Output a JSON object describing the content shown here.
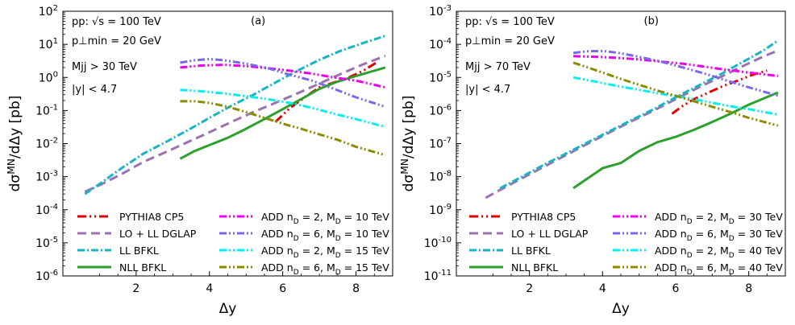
{
  "chart_data": [
    {
      "type": "line",
      "panel_label": "(a)",
      "annotations": [
        "pp:  √s = 100 TeV",
        "p⊥min = 20 GeV",
        "Mjj > 30 TeV",
        "|y| < 4.7"
      ],
      "xlabel": "Δy",
      "ylabel": "dσ^MN/dΔy  [pb]",
      "xlim": [
        0.0,
        9.0
      ],
      "ylim_exp": [
        -6,
        2
      ],
      "xticks": [
        2,
        4,
        6,
        8
      ],
      "ytick_labels": [
        "10^-6",
        "10^-5",
        "10^-4",
        "10^-3",
        "10^-2",
        "10^-1",
        "10^0",
        "10^1",
        "10^2"
      ],
      "series": [
        {
          "name": "PYTHIA8 CP5",
          "color": "#e00000",
          "x": [
            5.8,
            6.2,
            6.6,
            7.0,
            7.4,
            7.8,
            8.2,
            8.6
          ],
          "y": [
            0.045,
            0.12,
            0.25,
            0.5,
            0.7,
            1.0,
            1.6,
            3.0
          ]
        },
        {
          "name": "LO + LL DGLAP",
          "color": "#9b72b0",
          "x": [
            0.6,
            1.0,
            1.6,
            2.2,
            2.8,
            3.4,
            4.0,
            4.6,
            5.2,
            5.8,
            6.4,
            7.0,
            7.6,
            8.2,
            8.8
          ],
          "y": [
            0.00035,
            0.00055,
            0.0012,
            0.0028,
            0.0055,
            0.011,
            0.022,
            0.045,
            0.09,
            0.17,
            0.33,
            0.65,
            1.3,
            2.5,
            4.5
          ]
        },
        {
          "name": "LL BFKL",
          "color": "#17b5c4",
          "x": [
            0.6,
            1.0,
            1.6,
            2.2,
            2.8,
            3.4,
            4.0,
            4.6,
            5.2,
            5.8,
            6.4,
            7.0,
            7.6,
            8.2,
            8.8
          ],
          "y": [
            0.0003,
            0.0006,
            0.0018,
            0.005,
            0.011,
            0.025,
            0.06,
            0.14,
            0.3,
            0.7,
            1.6,
            3.4,
            6.5,
            11,
            18
          ]
        },
        {
          "name": "NLL BFKL",
          "color": "#2ca02c",
          "x": [
            3.2,
            3.6,
            4.0,
            4.5,
            5.0,
            5.5,
            6.0,
            6.5,
            7.0,
            7.5,
            8.0,
            8.8
          ],
          "y": [
            0.0035,
            0.006,
            0.009,
            0.015,
            0.028,
            0.055,
            0.11,
            0.22,
            0.45,
            0.75,
            1.1,
            2.0
          ]
        },
        {
          "name": "ADD n_D = 2,  M_D = 10 TeV",
          "color": "#ee00ee",
          "x": [
            3.2,
            3.8,
            4.4,
            5.0,
            5.6,
            6.2,
            6.8,
            7.4,
            8.0,
            8.8
          ],
          "y": [
            2.0,
            2.3,
            2.4,
            2.2,
            1.9,
            1.6,
            1.3,
            1.0,
            0.8,
            0.5
          ]
        },
        {
          "name": "ADD n_D = 6,  M_D = 10 TeV",
          "color": "#7b68ee",
          "x": [
            3.2,
            3.6,
            4.0,
            4.4,
            5.0,
            5.6,
            6.2,
            6.8,
            7.4,
            8.0,
            8.8
          ],
          "y": [
            2.8,
            3.3,
            3.6,
            3.3,
            2.6,
            1.9,
            1.2,
            0.8,
            0.45,
            0.25,
            0.13
          ]
        },
        {
          "name": "ADD n_D = 2,  M_D = 15 TeV",
          "color": "#00f0f0",
          "x": [
            3.2,
            3.8,
            4.4,
            5.0,
            5.6,
            6.2,
            6.8,
            7.4,
            8.0,
            8.8
          ],
          "y": [
            0.42,
            0.38,
            0.33,
            0.27,
            0.22,
            0.17,
            0.12,
            0.08,
            0.055,
            0.032
          ]
        },
        {
          "name": "ADD n_D = 6,  M_D = 15 TeV",
          "color": "#8b8b00",
          "x": [
            3.2,
            3.6,
            4.0,
            4.5,
            5.0,
            5.5,
            6.0,
            6.5,
            7.0,
            7.5,
            8.0,
            8.8
          ],
          "y": [
            0.19,
            0.19,
            0.17,
            0.13,
            0.09,
            0.06,
            0.04,
            0.028,
            0.019,
            0.013,
            0.008,
            0.0045
          ]
        }
      ]
    },
    {
      "type": "line",
      "panel_label": "(b)",
      "annotations": [
        "pp:  √s = 100 TeV",
        "p⊥min = 20 GeV",
        "Mjj > 70 TeV",
        "|y| < 4.7"
      ],
      "xlabel": "Δy",
      "ylabel": "dσ^MN/dΔy  [pb]",
      "xlim": [
        0.0,
        9.0
      ],
      "ylim_exp": [
        -11,
        -3
      ],
      "xticks": [
        2,
        4,
        6,
        8
      ],
      "ytick_labels": [
        "10^-11",
        "10^-10",
        "10^-9",
        "10^-8",
        "10^-7",
        "10^-6",
        "10^-5",
        "10^-4",
        "10^-3"
      ],
      "series": [
        {
          "name": "PYTHIA8 CP5",
          "color": "#e00000",
          "x": [
            5.9,
            6.2,
            6.5,
            6.9,
            7.3,
            7.7,
            8.1,
            8.5
          ],
          "y": [
            8e-07,
            1.4e-06,
            2.2e-06,
            3.5e-06,
            5.5e-06,
            8e-06,
            1.2e-05,
            1.6e-05
          ]
        },
        {
          "name": "LO + LL DGLAP",
          "color": "#9b72b0",
          "x": [
            0.8,
            1.2,
            1.8,
            2.4,
            3.0,
            3.6,
            4.2,
            4.8,
            5.4,
            6.0,
            6.6,
            7.2,
            7.8,
            8.4,
            8.8
          ],
          "y": [
            2.3e-09,
            4e-09,
            9e-09,
            2e-08,
            4.5e-08,
            1e-07,
            2.2e-07,
            4.8e-07,
            1e-06,
            2.2e-06,
            4.8e-06,
            1e-05,
            2.1e-05,
            4.3e-05,
            6.5e-05
          ]
        },
        {
          "name": "LL BFKL",
          "color": "#17b5c4",
          "x": [
            1.2,
            1.8,
            2.4,
            3.0,
            3.6,
            4.2,
            4.8,
            5.4,
            6.0,
            6.6,
            7.2,
            7.8,
            8.4,
            8.8
          ],
          "y": [
            4.5e-09,
            1e-08,
            2.3e-08,
            5e-08,
            1.1e-07,
            2.4e-07,
            5.2e-07,
            1.1e-06,
            2.5e-06,
            5.5e-06,
            1.2e-05,
            2.8e-05,
            6.5e-05,
            0.00013
          ]
        },
        {
          "name": "NLL BFKL",
          "color": "#2ca02c",
          "x": [
            3.2,
            3.6,
            4.0,
            4.5,
            5.0,
            5.5,
            6.0,
            6.5,
            7.0,
            7.5,
            8.0,
            8.8
          ],
          "y": [
            4.5e-09,
            9e-09,
            1.8e-08,
            2.6e-08,
            6e-08,
            1.1e-07,
            1.6e-07,
            2.6e-07,
            4.5e-07,
            8e-07,
            1.5e-06,
            3.5e-06
          ]
        },
        {
          "name": "ADD n_D = 2,  M_D = 30 TeV",
          "color": "#ee00ee",
          "x": [
            3.2,
            3.8,
            4.4,
            5.0,
            5.6,
            6.2,
            6.8,
            7.4,
            8.0,
            8.8
          ],
          "y": [
            4.4e-05,
            4.2e-05,
            3.9e-05,
            3.5e-05,
            3e-05,
            2.6e-05,
            2.1e-05,
            1.7e-05,
            1.4e-05,
            1.1e-05
          ]
        },
        {
          "name": "ADD n_D = 6,  M_D = 30 TeV",
          "color": "#7b68ee",
          "x": [
            3.2,
            3.6,
            4.0,
            4.4,
            5.0,
            5.6,
            6.2,
            6.8,
            7.4,
            8.0,
            8.8
          ],
          "y": [
            5.5e-05,
            6.2e-05,
            6.3e-05,
            5.6e-05,
            4.2e-05,
            3e-05,
            2e-05,
            1.3e-05,
            8e-06,
            5e-06,
            2.8e-06
          ]
        },
        {
          "name": "ADD n_D = 2,  M_D = 40 TeV",
          "color": "#00f0f0",
          "x": [
            3.2,
            3.8,
            4.4,
            5.0,
            5.6,
            6.2,
            6.8,
            7.4,
            8.0,
            8.8
          ],
          "y": [
            1e-05,
            7.5e-06,
            5.5e-06,
            4.2e-06,
            3.2e-06,
            2.5e-06,
            1.9e-06,
            1.4e-06,
            1.1e-06,
            7.5e-07
          ]
        },
        {
          "name": "ADD n_D = 6,  M_D = 40 TeV",
          "color": "#8b8b00",
          "x": [
            3.2,
            3.6,
            4.0,
            4.5,
            5.0,
            5.5,
            6.0,
            6.5,
            7.0,
            7.5,
            8.0,
            8.8
          ],
          "y": [
            2.8e-05,
            2e-05,
            1.4e-05,
            9e-06,
            6e-06,
            4e-06,
            2.8e-06,
            1.9e-06,
            1.3e-06,
            9e-07,
            6e-07,
            3.5e-07
          ]
        }
      ]
    }
  ]
}
